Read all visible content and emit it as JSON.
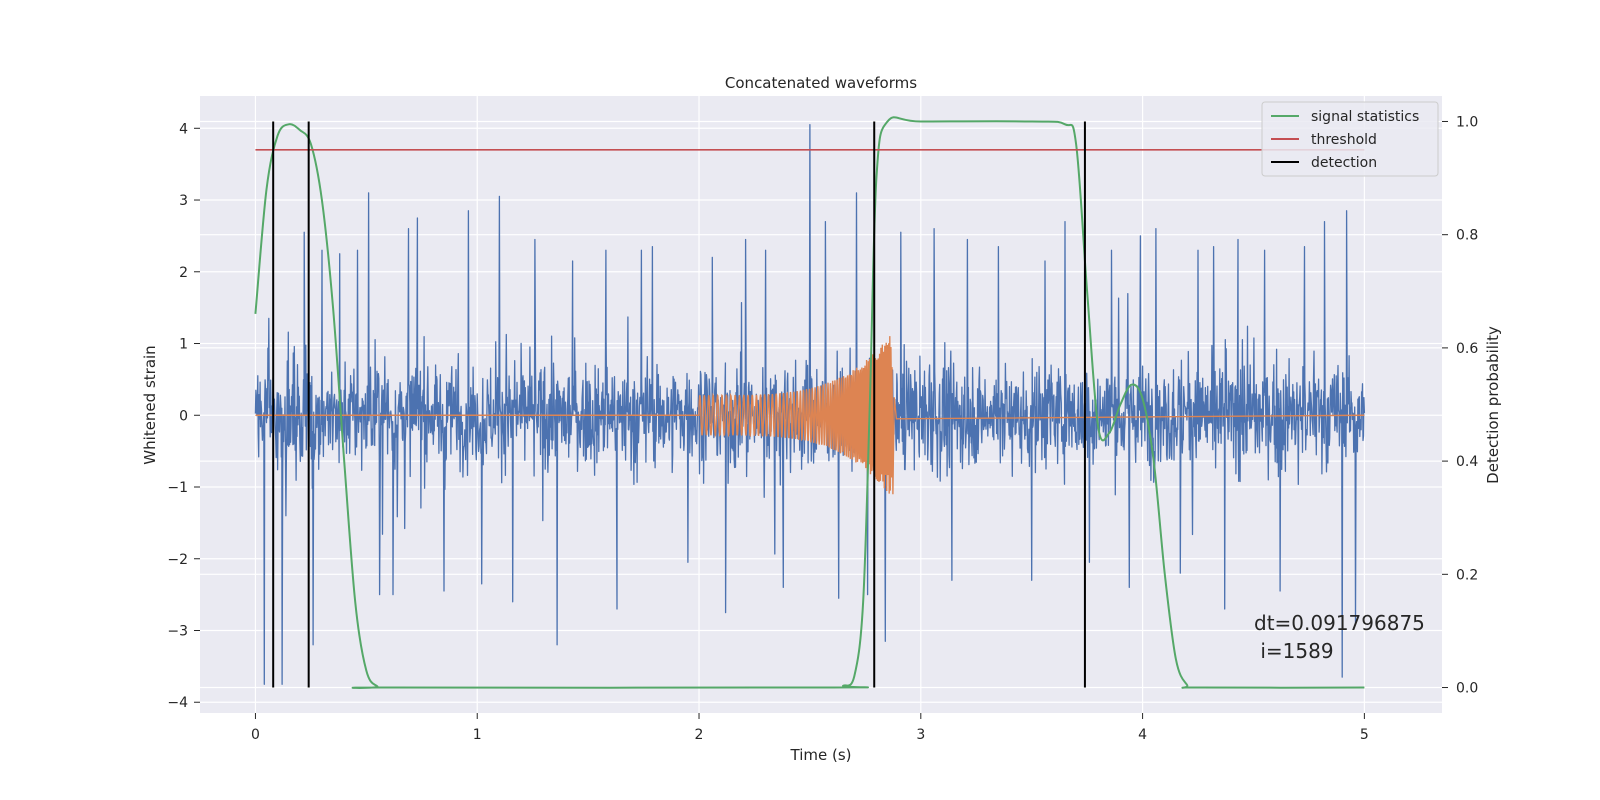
{
  "chart_data": {
    "type": "line",
    "title": "Concatenated waveforms",
    "xlabel": "Time (s)",
    "ylabel": "Whitened strain",
    "ylabel_right": "Detection probability",
    "xlim": [
      -0.25,
      5.35
    ],
    "ylim": [
      -4.15,
      4.45
    ],
    "ylim_right": [
      -0.045,
      1.045
    ],
    "xticks": [
      0,
      1,
      2,
      3,
      4,
      5
    ],
    "yticks": [
      -4,
      -3,
      -2,
      -1,
      0,
      1,
      2,
      3,
      4
    ],
    "yticks_right": [
      0.0,
      0.2,
      0.4,
      0.6,
      0.8,
      1.0
    ],
    "xtick_labels": [
      "0",
      "1",
      "2",
      "3",
      "4",
      "5"
    ],
    "ytick_labels": [
      "−4",
      "−3",
      "−2",
      "−1",
      "0",
      "1",
      "2",
      "3",
      "4"
    ],
    "ytick_labels_right": [
      "0.0",
      "0.2",
      "0.4",
      "0.6",
      "0.8",
      "1.0"
    ],
    "grid": true,
    "legend_position": "top-right",
    "legend": [
      "signal statistics",
      "threshold",
      "detection"
    ],
    "colors": {
      "strain": "#4c72b0",
      "waveform": "#dd8452",
      "signal_statistics": "#55a868",
      "threshold": "#c44e52",
      "detection": "#000000",
      "background": "#eaeaf2",
      "grid": "#ffffff"
    },
    "strain_series": {
      "x_range": [
        0,
        5
      ],
      "spikes": [
        [
          0.04,
          -3.75
        ],
        [
          0.06,
          1.35
        ],
        [
          0.12,
          -3.75
        ],
        [
          0.22,
          2.55
        ],
        [
          0.26,
          -3.2
        ],
        [
          0.3,
          2.3
        ],
        [
          0.38,
          2.25
        ],
        [
          0.46,
          2.3
        ],
        [
          0.51,
          3.1
        ],
        [
          0.56,
          -2.5
        ],
        [
          0.62,
          -2.5
        ],
        [
          0.69,
          2.6
        ],
        [
          0.73,
          2.75
        ],
        [
          0.85,
          -2.45
        ],
        [
          0.96,
          2.85
        ],
        [
          1.02,
          -2.35
        ],
        [
          1.1,
          3.05
        ],
        [
          1.16,
          -2.6
        ],
        [
          1.26,
          2.45
        ],
        [
          1.36,
          -3.2
        ],
        [
          1.43,
          2.15
        ],
        [
          1.58,
          2.3
        ],
        [
          1.63,
          -2.7
        ],
        [
          1.74,
          2.3
        ],
        [
          1.79,
          2.35
        ],
        [
          1.95,
          -2.05
        ],
        [
          2.06,
          2.2
        ],
        [
          2.12,
          -2.75
        ],
        [
          2.21,
          2.45
        ],
        [
          2.3,
          2.3
        ],
        [
          2.38,
          -2.4
        ],
        [
          2.5,
          4.05
        ],
        [
          2.57,
          2.7
        ],
        [
          2.63,
          -2.55
        ],
        [
          2.71,
          3.1
        ],
        [
          2.76,
          -2.5
        ],
        [
          2.84,
          -3.15
        ],
        [
          2.91,
          2.55
        ],
        [
          3.06,
          2.6
        ],
        [
          3.14,
          -2.3
        ],
        [
          3.21,
          2.45
        ],
        [
          3.35,
          2.35
        ],
        [
          3.5,
          -2.3
        ],
        [
          3.56,
          2.15
        ],
        [
          3.65,
          2.7
        ],
        [
          3.76,
          -2.05
        ],
        [
          3.86,
          2.3
        ],
        [
          3.94,
          -2.4
        ],
        [
          3.99,
          2.5
        ],
        [
          4.06,
          2.6
        ],
        [
          4.17,
          -2.2
        ],
        [
          4.25,
          2.3
        ],
        [
          4.32,
          2.35
        ],
        [
          4.37,
          -2.7
        ],
        [
          4.43,
          2.45
        ],
        [
          4.55,
          2.3
        ],
        [
          4.62,
          -2.45
        ],
        [
          4.73,
          2.35
        ],
        [
          4.82,
          2.7
        ],
        [
          4.9,
          -3.65
        ],
        [
          4.92,
          2.85
        ],
        [
          4.96,
          -2.9
        ]
      ]
    },
    "waveform_series": {
      "x_start": 2.0,
      "x_peak": 2.87,
      "x_end": 2.88,
      "amp_start": 0.28,
      "amp_peak": 1.15,
      "amp_min_neg": -1.1
    },
    "signal_statistics": {
      "x": [
        0.0,
        0.05,
        0.1,
        0.15,
        0.2,
        0.25,
        0.3,
        0.35,
        0.4,
        0.45,
        0.5,
        0.55,
        0.6,
        2.6,
        2.65,
        2.7,
        2.74,
        2.77,
        2.8,
        2.85,
        3.0,
        3.5,
        3.65,
        3.7,
        3.75,
        3.8,
        3.85,
        3.9,
        3.95,
        4.0,
        4.05,
        4.1,
        4.15,
        4.2,
        4.25,
        5.0
      ],
      "y": [
        0.66,
        0.88,
        0.975,
        0.995,
        0.985,
        0.96,
        0.86,
        0.67,
        0.4,
        0.15,
        0.03,
        0.002,
        0.0,
        0.0,
        0.003,
        0.02,
        0.15,
        0.5,
        0.9,
        1.0,
        1.0,
        1.0,
        0.995,
        0.96,
        0.7,
        0.46,
        0.45,
        0.5,
        0.535,
        0.51,
        0.4,
        0.2,
        0.05,
        0.005,
        0.0,
        0.0
      ]
    },
    "threshold": {
      "value": 0.95,
      "x_range": [
        0,
        5
      ]
    },
    "detections": [
      0.08,
      0.24,
      2.79,
      3.74
    ],
    "annotation": {
      "line1": "dt=0.091796875",
      "line2": " i=1589"
    }
  }
}
